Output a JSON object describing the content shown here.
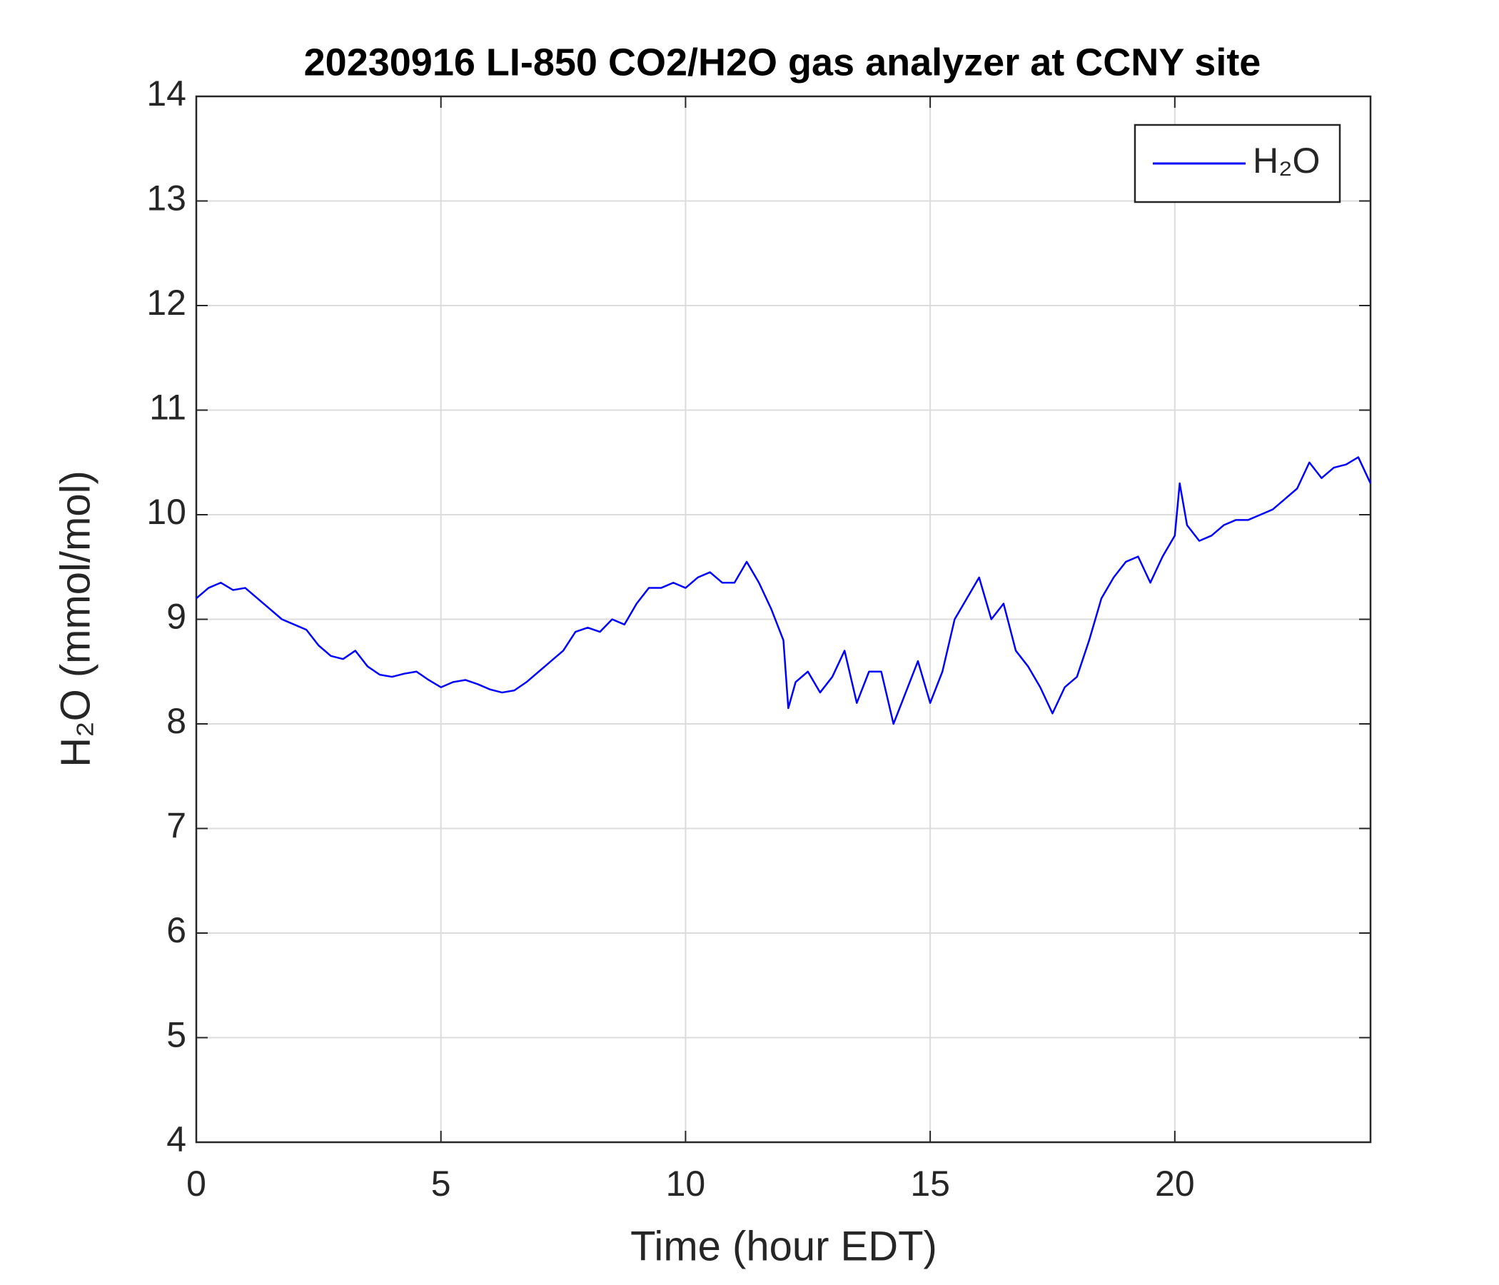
{
  "chart_data": {
    "type": "line",
    "title": "20230916 LI-850 CO2/H2O gas analyzer at CCNY site",
    "xlabel": "Time (hour EDT)",
    "ylabel": "H₂O (mmol/mol)",
    "x": [
      0,
      0.25,
      0.5,
      0.75,
      1,
      1.25,
      1.5,
      1.75,
      2,
      2.25,
      2.5,
      2.75,
      3,
      3.25,
      3.5,
      3.75,
      4,
      4.25,
      4.5,
      4.75,
      5,
      5.25,
      5.5,
      5.75,
      6,
      6.25,
      6.5,
      6.75,
      7,
      7.25,
      7.5,
      7.75,
      8,
      8.25,
      8.5,
      8.75,
      9,
      9.25,
      9.5,
      9.75,
      10,
      10.25,
      10.5,
      10.75,
      11,
      11.25,
      11.5,
      11.75,
      12,
      12.1,
      12.25,
      12.5,
      12.75,
      13,
      13.25,
      13.5,
      13.75,
      14,
      14.25,
      14.5,
      14.75,
      15,
      15.25,
      15.5,
      15.75,
      16,
      16.25,
      16.5,
      16.75,
      17,
      17.25,
      17.5,
      17.75,
      18,
      18.25,
      18.5,
      18.75,
      19,
      19.25,
      19.5,
      19.75,
      20,
      20.1,
      20.25,
      20.5,
      20.75,
      21,
      21.25,
      21.5,
      21.75,
      22,
      22.25,
      22.5,
      22.75,
      23,
      23.25,
      23.5,
      23.75,
      24
    ],
    "series": [
      {
        "name": "H₂O",
        "color": "#0000ff",
        "values": [
          9.2,
          9.3,
          9.35,
          9.28,
          9.3,
          9.2,
          9.1,
          9.0,
          8.95,
          8.9,
          8.75,
          8.65,
          8.62,
          8.7,
          8.55,
          8.47,
          8.45,
          8.48,
          8.5,
          8.42,
          8.35,
          8.4,
          8.42,
          8.38,
          8.33,
          8.3,
          8.32,
          8.4,
          8.5,
          8.6,
          8.7,
          8.88,
          8.92,
          8.88,
          9.0,
          8.95,
          9.15,
          9.3,
          9.3,
          9.35,
          9.3,
          9.4,
          9.45,
          9.35,
          9.35,
          9.55,
          9.35,
          9.1,
          8.8,
          8.15,
          8.4,
          8.5,
          8.3,
          8.45,
          8.7,
          8.2,
          8.5,
          8.5,
          8.0,
          8.3,
          8.6,
          8.2,
          8.5,
          9.0,
          9.2,
          9.4,
          9.0,
          9.15,
          8.7,
          8.55,
          8.35,
          8.1,
          8.35,
          8.45,
          8.8,
          9.2,
          9.4,
          9.55,
          9.6,
          9.35,
          9.6,
          9.8,
          10.3,
          9.9,
          9.75,
          9.8,
          9.9,
          9.95,
          9.95,
          10.0,
          10.05,
          10.15,
          10.25,
          10.5,
          10.35,
          10.45,
          10.48,
          10.55,
          10.3
        ]
      }
    ],
    "xlim": [
      0,
      24
    ],
    "xticks": [
      0,
      5,
      10,
      15,
      20
    ],
    "ylim": [
      4,
      14
    ],
    "yticks": [
      4,
      5,
      6,
      7,
      8,
      9,
      10,
      11,
      12,
      13,
      14
    ],
    "grid": true,
    "legend": "upper right"
  }
}
